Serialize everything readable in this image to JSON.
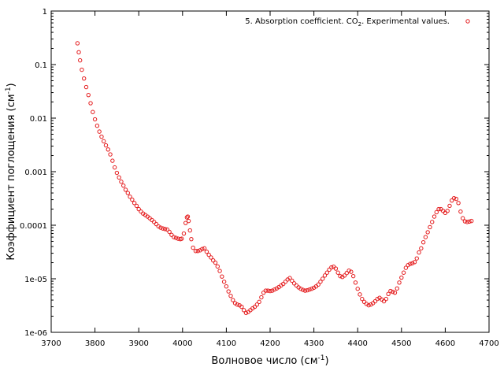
{
  "chart_data": {
    "type": "scatter",
    "xlabel": "Волновое число (см",
    "xlabel_sup": "-1",
    "xlabel_tail": ")",
    "ylabel": "Коэффициент поглощения (см",
    "ylabel_sup": "-1",
    "ylabel_tail": ")",
    "xlim": [
      3700,
      4700
    ],
    "ylim": [
      1e-06,
      1
    ],
    "yscale": "log",
    "grid": false,
    "legend_position": "top-right",
    "x_ticks": [
      "3700",
      "3800",
      "3900",
      "4000",
      "4100",
      "4200",
      "4300",
      "4400",
      "4500",
      "4600",
      "4700"
    ],
    "y_ticks": [
      "1e-06",
      "1e-05",
      "0.0001",
      "0.001",
      "0.01",
      "0.1",
      "1"
    ],
    "series": [
      {
        "legend_pre": "5. Absorption coefficient. CO",
        "legend_sub": "2",
        "legend_post": ". Experimental values.",
        "color": "#e41a1c",
        "marker": "open-circle",
        "points": [
          [
            3760,
            0.25
          ],
          [
            3763,
            0.17
          ],
          [
            3766,
            0.12
          ],
          [
            3770,
            0.08
          ],
          [
            3775,
            0.055
          ],
          [
            3780,
            0.038
          ],
          [
            3785,
            0.027
          ],
          [
            3790,
            0.019
          ],
          [
            3795,
            0.013
          ],
          [
            3800,
            0.0095
          ],
          [
            3805,
            0.0072
          ],
          [
            3810,
            0.0056
          ],
          [
            3815,
            0.0045
          ],
          [
            3820,
            0.0037
          ],
          [
            3825,
            0.0031
          ],
          [
            3830,
            0.0026
          ],
          [
            3835,
            0.0021
          ],
          [
            3840,
            0.0016
          ],
          [
            3845,
            0.0012
          ],
          [
            3850,
            0.00095
          ],
          [
            3855,
            0.00078
          ],
          [
            3860,
            0.00065
          ],
          [
            3865,
            0.00055
          ],
          [
            3870,
            0.00046
          ],
          [
            3875,
            0.0004
          ],
          [
            3880,
            0.00034
          ],
          [
            3885,
            0.0003
          ],
          [
            3890,
            0.00026
          ],
          [
            3895,
            0.00023
          ],
          [
            3900,
            0.0002
          ],
          [
            3905,
            0.00018
          ],
          [
            3910,
            0.000165
          ],
          [
            3915,
            0.000155
          ],
          [
            3920,
            0.000145
          ],
          [
            3925,
            0.000135
          ],
          [
            3930,
            0.000125
          ],
          [
            3935,
            0.000115
          ],
          [
            3940,
            0.000105
          ],
          [
            3945,
            9.5e-05
          ],
          [
            3950,
            9e-05
          ],
          [
            3955,
            8.7e-05
          ],
          [
            3960,
            8.5e-05
          ],
          [
            3965,
            8.3e-05
          ],
          [
            3970,
            7.5e-05
          ],
          [
            3975,
            6.6e-05
          ],
          [
            3980,
            6e-05
          ],
          [
            3985,
            5.8e-05
          ],
          [
            3990,
            5.6e-05
          ],
          [
            3995,
            5.5e-05
          ],
          [
            3998,
            5.6e-05
          ],
          [
            4003,
            7e-05
          ],
          [
            4007,
            0.00011
          ],
          [
            4010,
            0.00014
          ],
          [
            4012,
            0.000145
          ],
          [
            4014,
            0.00012
          ],
          [
            4017,
            8e-05
          ],
          [
            4020,
            5.5e-05
          ],
          [
            4024,
            3.8e-05
          ],
          [
            4030,
            3.3e-05
          ],
          [
            4035,
            3.3e-05
          ],
          [
            4040,
            3.4e-05
          ],
          [
            4045,
            3.6e-05
          ],
          [
            4050,
            3.7e-05
          ],
          [
            4055,
            3.2e-05
          ],
          [
            4060,
            2.8e-05
          ],
          [
            4065,
            2.5e-05
          ],
          [
            4070,
            2.2e-05
          ],
          [
            4075,
            2e-05
          ],
          [
            4080,
            1.7e-05
          ],
          [
            4085,
            1.4e-05
          ],
          [
            4090,
            1.1e-05
          ],
          [
            4095,
            8.8e-06
          ],
          [
            4100,
            7.2e-06
          ],
          [
            4105,
            5.8e-06
          ],
          [
            4110,
            4.8e-06
          ],
          [
            4115,
            4e-06
          ],
          [
            4120,
            3.5e-06
          ],
          [
            4125,
            3.3e-06
          ],
          [
            4130,
            3.2e-06
          ],
          [
            4135,
            3e-06
          ],
          [
            4140,
            2.6e-06
          ],
          [
            4145,
            2.3e-06
          ],
          [
            4150,
            2.4e-06
          ],
          [
            4155,
            2.6e-06
          ],
          [
            4160,
            2.8e-06
          ],
          [
            4165,
            3e-06
          ],
          [
            4170,
            3.3e-06
          ],
          [
            4175,
            3.7e-06
          ],
          [
            4180,
            4.5e-06
          ],
          [
            4185,
            5.5e-06
          ],
          [
            4190,
            6e-06
          ],
          [
            4195,
            6e-06
          ],
          [
            4200,
            5.9e-06
          ],
          [
            4205,
            6e-06
          ],
          [
            4210,
            6.3e-06
          ],
          [
            4215,
            6.6e-06
          ],
          [
            4220,
            7e-06
          ],
          [
            4225,
            7.5e-06
          ],
          [
            4230,
            8e-06
          ],
          [
            4235,
            8.8e-06
          ],
          [
            4240,
            9.7e-06
          ],
          [
            4245,
            1.03e-05
          ],
          [
            4250,
            9.2e-06
          ],
          [
            4255,
            8.2e-06
          ],
          [
            4260,
            7.5e-06
          ],
          [
            4265,
            6.9e-06
          ],
          [
            4270,
            6.5e-06
          ],
          [
            4275,
            6.2e-06
          ],
          [
            4280,
            6e-06
          ],
          [
            4285,
            6.1e-06
          ],
          [
            4290,
            6.3e-06
          ],
          [
            4295,
            6.5e-06
          ],
          [
            4300,
            6.8e-06
          ],
          [
            4305,
            7.2e-06
          ],
          [
            4310,
            7.8e-06
          ],
          [
            4315,
            8.8e-06
          ],
          [
            4320,
            1e-05
          ],
          [
            4325,
            1.15e-05
          ],
          [
            4330,
            1.3e-05
          ],
          [
            4335,
            1.48e-05
          ],
          [
            4340,
            1.63e-05
          ],
          [
            4345,
            1.68e-05
          ],
          [
            4350,
            1.55e-05
          ],
          [
            4355,
            1.3e-05
          ],
          [
            4360,
            1.12e-05
          ],
          [
            4365,
            1.08e-05
          ],
          [
            4370,
            1.15e-05
          ],
          [
            4375,
            1.28e-05
          ],
          [
            4380,
            1.42e-05
          ],
          [
            4385,
            1.35e-05
          ],
          [
            4390,
            1.12e-05
          ],
          [
            4395,
            8.5e-06
          ],
          [
            4400,
            6.5e-06
          ],
          [
            4405,
            5.1e-06
          ],
          [
            4410,
            4.2e-06
          ],
          [
            4415,
            3.7e-06
          ],
          [
            4420,
            3.4e-06
          ],
          [
            4425,
            3.2e-06
          ],
          [
            4430,
            3.3e-06
          ],
          [
            4435,
            3.5e-06
          ],
          [
            4440,
            3.8e-06
          ],
          [
            4445,
            4.2e-06
          ],
          [
            4450,
            4.4e-06
          ],
          [
            4455,
            4.1e-06
          ],
          [
            4460,
            3.8e-06
          ],
          [
            4465,
            4.2e-06
          ],
          [
            4470,
            5.2e-06
          ],
          [
            4475,
            5.9e-06
          ],
          [
            4480,
            5.7e-06
          ],
          [
            4485,
            5.5e-06
          ],
          [
            4490,
            6.6e-06
          ],
          [
            4495,
            8.5e-06
          ],
          [
            4500,
            1.05e-05
          ],
          [
            4505,
            1.3e-05
          ],
          [
            4510,
            1.6e-05
          ],
          [
            4515,
            1.8e-05
          ],
          [
            4520,
            1.9e-05
          ],
          [
            4525,
            1.95e-05
          ],
          [
            4530,
            2.05e-05
          ],
          [
            4535,
            2.4e-05
          ],
          [
            4540,
            3.1e-05
          ],
          [
            4545,
            3.7e-05
          ],
          [
            4550,
            4.8e-05
          ],
          [
            4555,
            6e-05
          ],
          [
            4560,
            7.4e-05
          ],
          [
            4565,
            9.2e-05
          ],
          [
            4570,
            0.000115
          ],
          [
            4575,
            0.000145
          ],
          [
            4580,
            0.000175
          ],
          [
            4585,
            0.0002
          ],
          [
            4590,
            0.0002
          ],
          [
            4595,
            0.000185
          ],
          [
            4600,
            0.00017
          ],
          [
            4605,
            0.000185
          ],
          [
            4610,
            0.00023
          ],
          [
            4615,
            0.00029
          ],
          [
            4620,
            0.00032
          ],
          [
            4625,
            0.00031
          ],
          [
            4630,
            0.00026
          ],
          [
            4635,
            0.00018
          ],
          [
            4640,
            0.000135
          ],
          [
            4645,
            0.000118
          ],
          [
            4650,
            0.000115
          ],
          [
            4655,
            0.000117
          ],
          [
            4660,
            0.00012
          ]
        ]
      }
    ]
  }
}
